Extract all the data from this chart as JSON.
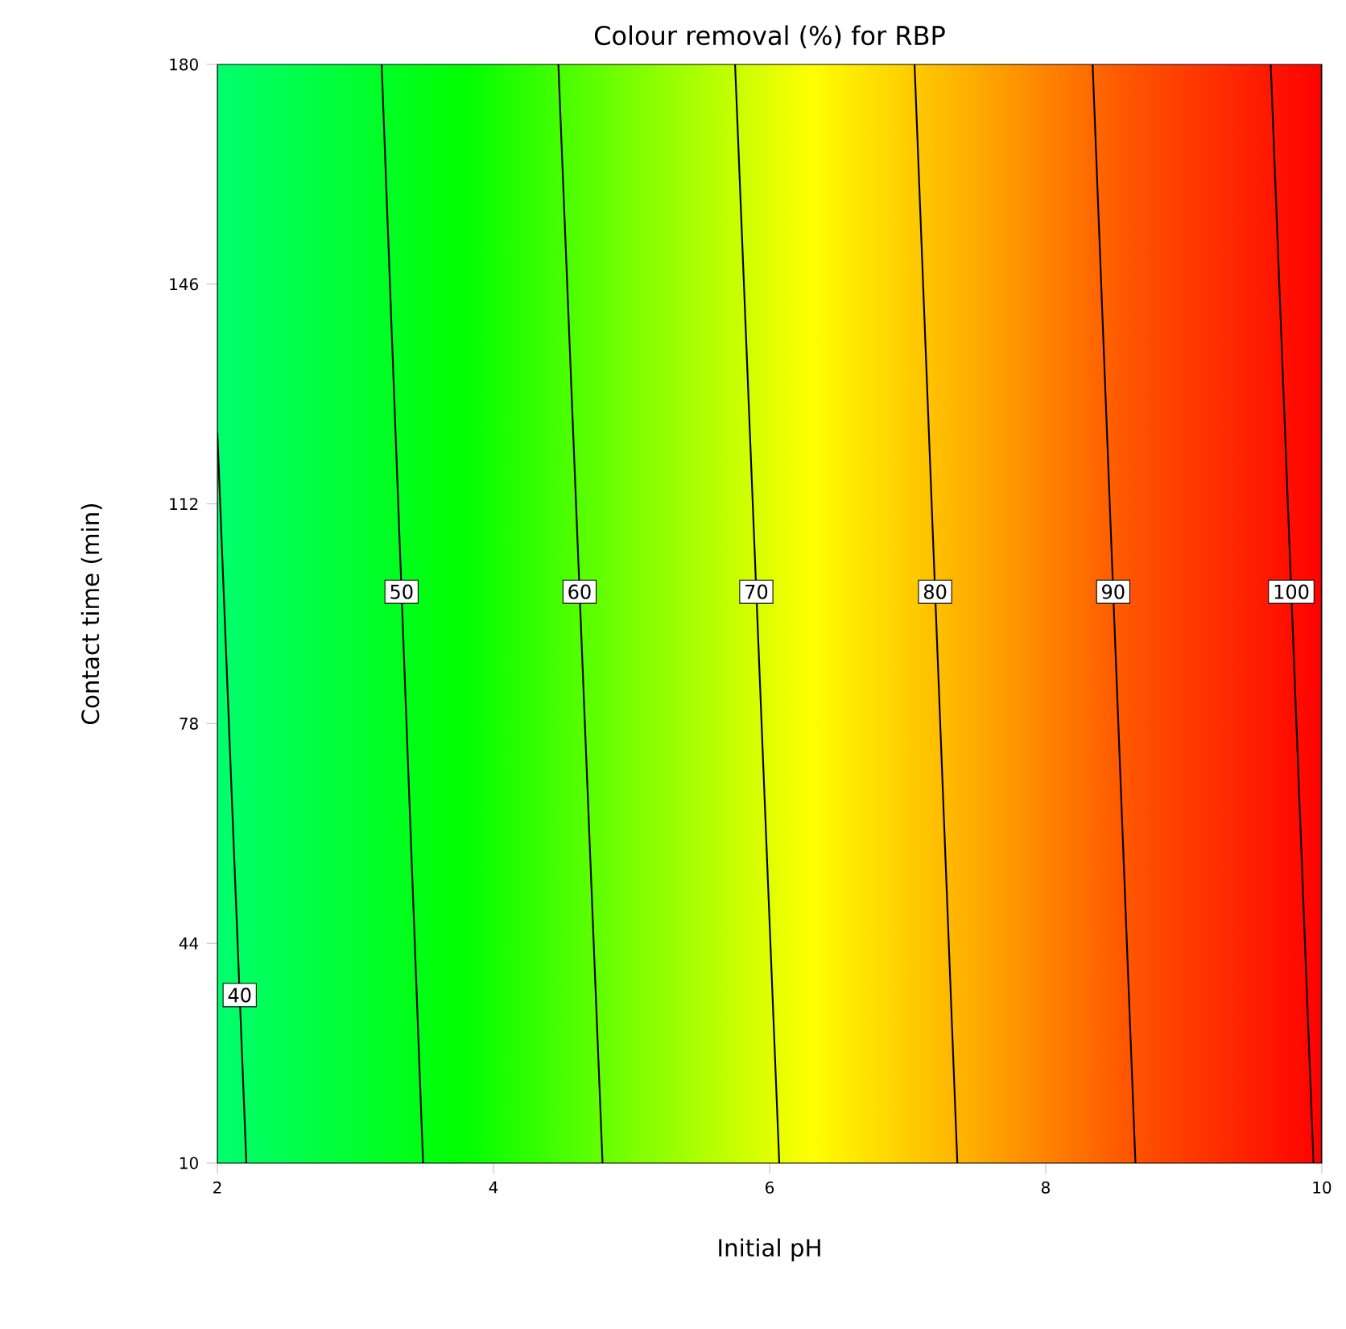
{
  "chart_data": {
    "type": "line",
    "title": "Colour removal (%)  for RBP",
    "xlabel": "Initial pH",
    "ylabel": "Contact time (min)",
    "xlim": [
      2,
      10
    ],
    "ylim": [
      10,
      180
    ],
    "xticks": [
      2,
      4,
      6,
      8,
      10
    ],
    "yticks": [
      10,
      44,
      78,
      112,
      146,
      180
    ],
    "grid": false,
    "marker": "none",
    "line_style": "solid",
    "series": [
      {
        "name": "40",
        "color": "#000000",
        "x": [
          2.21,
          2.0
        ],
        "values": [
          10,
          123
        ]
      },
      {
        "name": "50",
        "color": "#000000",
        "x": [
          3.49,
          3.19
        ],
        "values": [
          10,
          180
        ]
      },
      {
        "name": "60",
        "color": "#000000",
        "x": [
          4.79,
          4.47
        ],
        "values": [
          10,
          180
        ]
      },
      {
        "name": "70",
        "color": "#000000",
        "x": [
          6.07,
          5.75
        ],
        "values": [
          10,
          180
        ]
      },
      {
        "name": "80",
        "color": "#000000",
        "x": [
          7.36,
          7.05
        ],
        "values": [
          10,
          180
        ]
      },
      {
        "name": "90",
        "color": "#000000",
        "x": [
          8.65,
          8.34
        ],
        "values": [
          10,
          180
        ]
      },
      {
        "name": "100",
        "color": "#000000",
        "x": [
          9.94,
          9.63
        ],
        "values": [
          10,
          180
        ]
      }
    ]
  }
}
